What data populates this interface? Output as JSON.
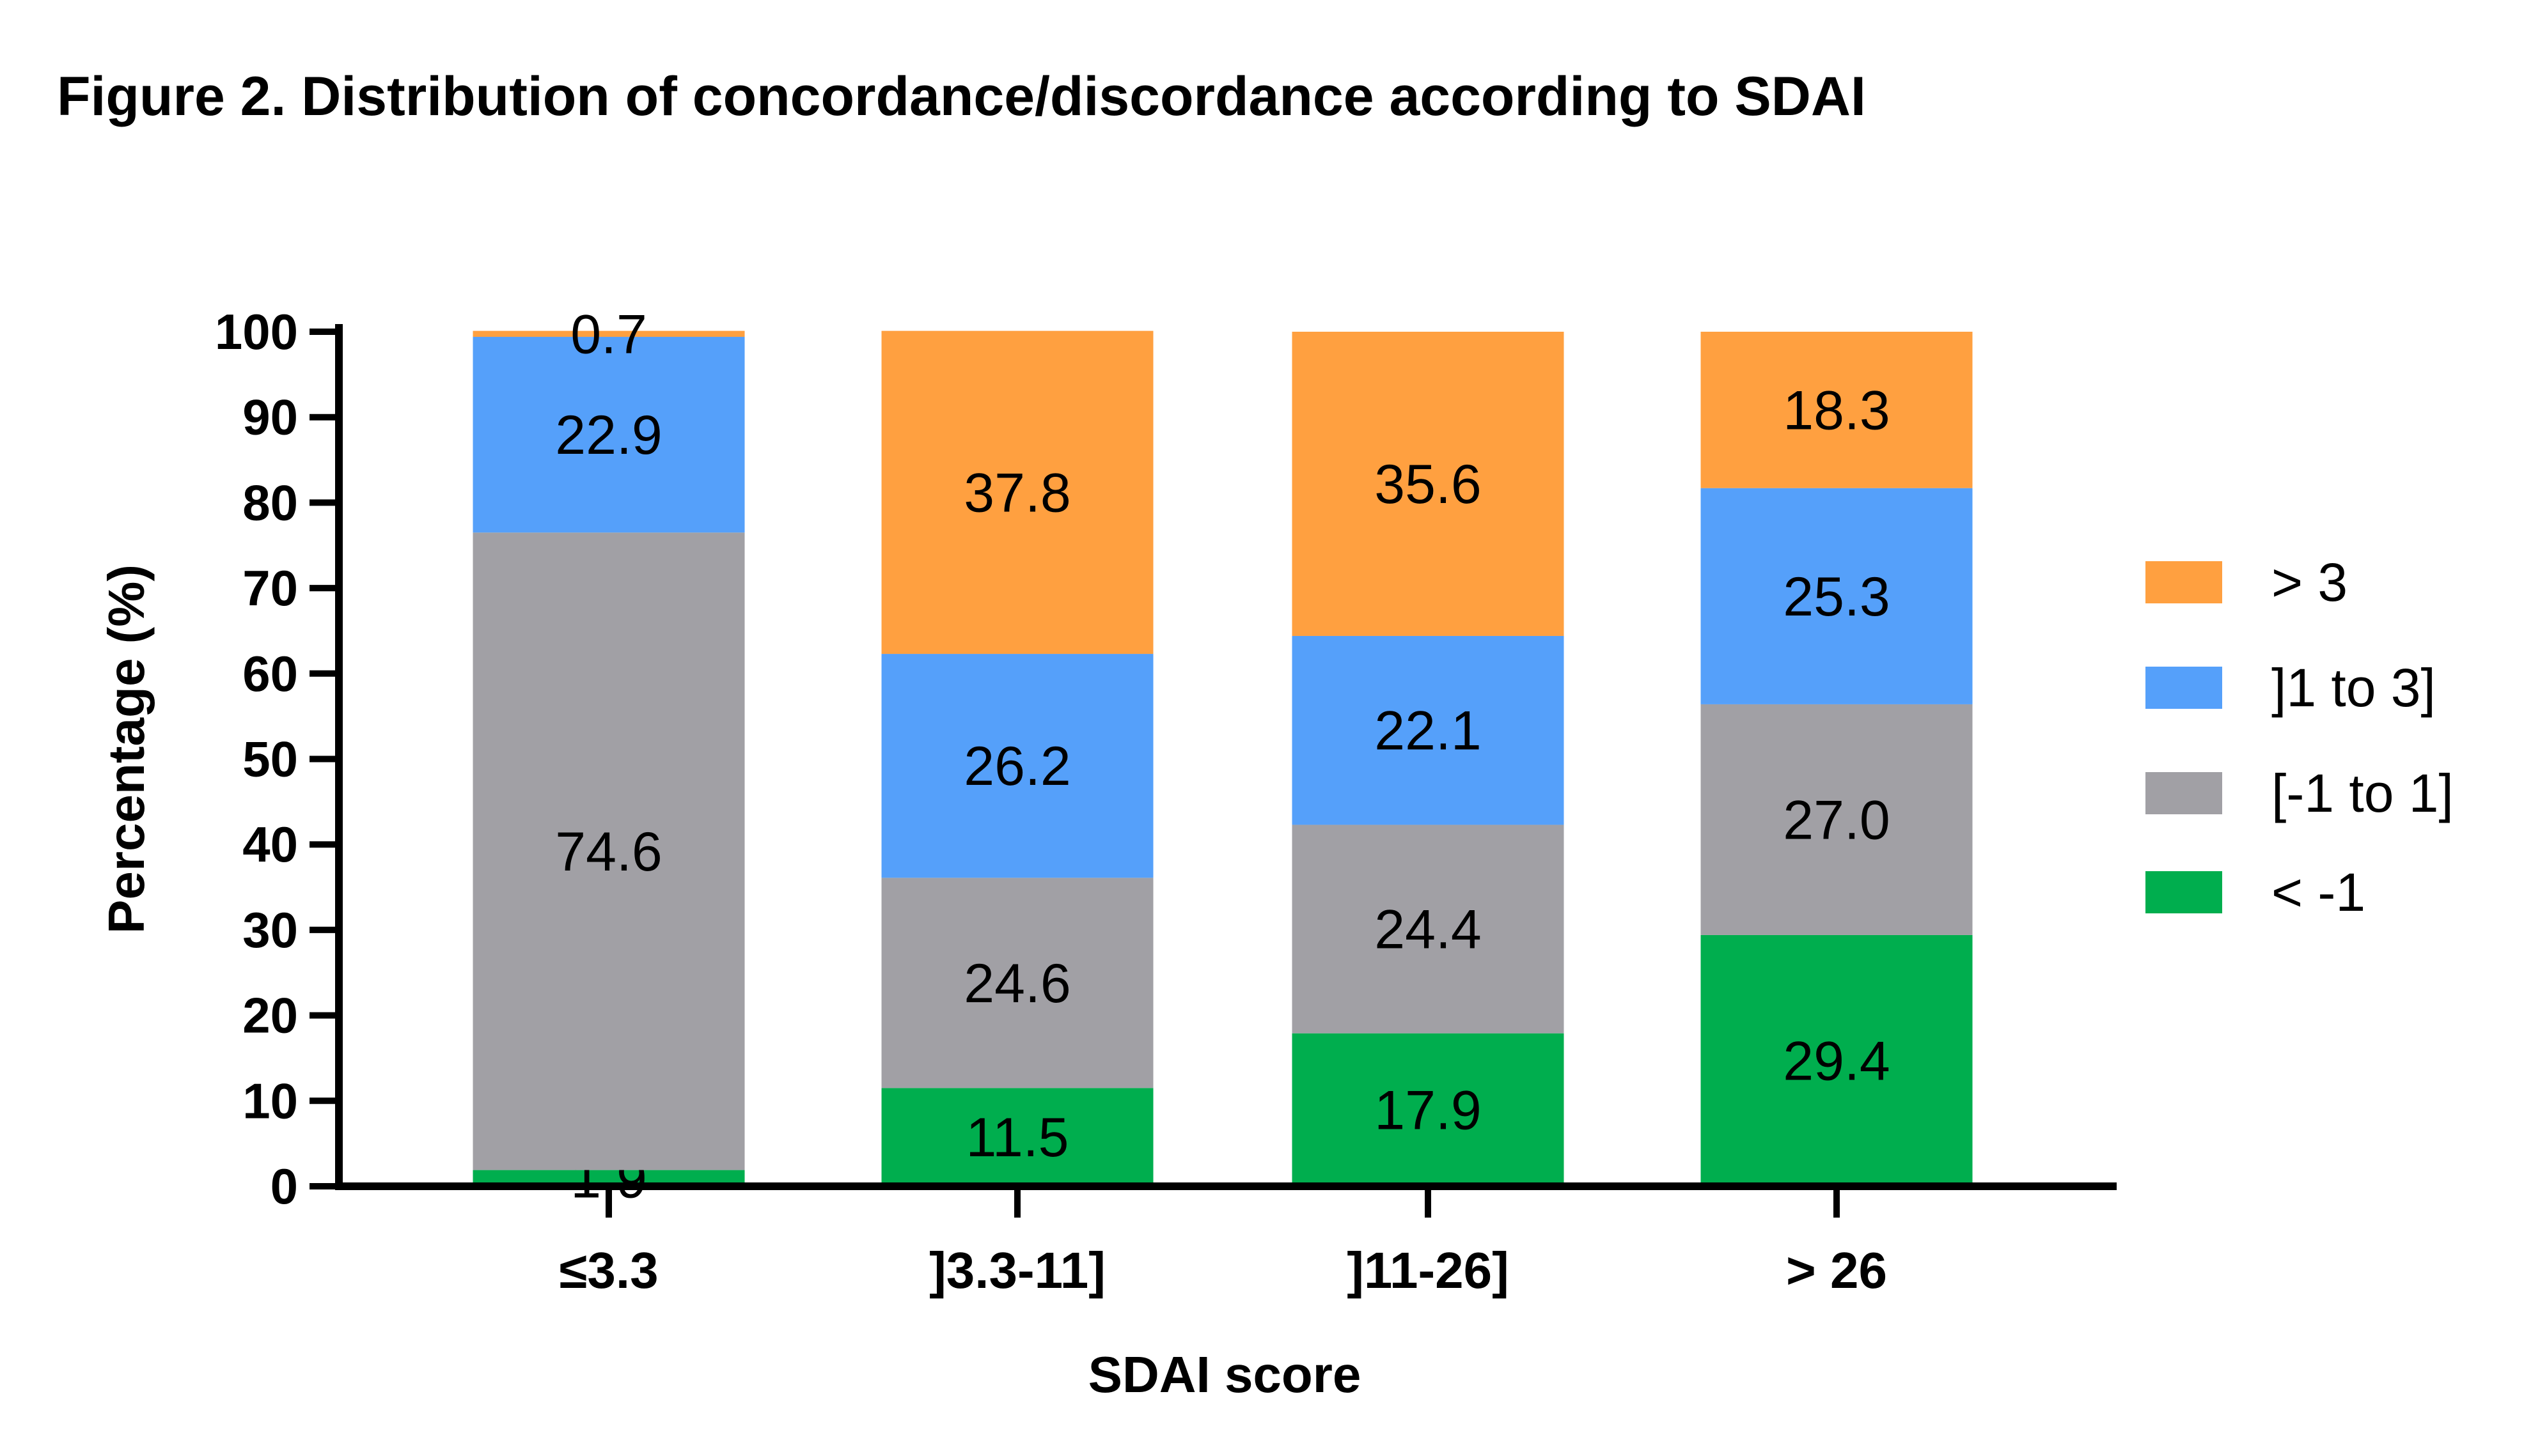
{
  "chart_data": {
    "type": "bar",
    "stacked": true,
    "title": "Figure 2. Distribution of concordance/discordance according to SDAI",
    "xlabel": "SDAI score",
    "ylabel": "Percentage (%)",
    "ylim": [
      0,
      100
    ],
    "yticks": [
      "0",
      "10",
      "20",
      "30",
      "40",
      "50",
      "60",
      "70",
      "80",
      "90",
      "100"
    ],
    "categories": [
      "≤3.3",
      "]3.3-11]",
      "]11-26]",
      "> 26"
    ],
    "series": [
      {
        "name": "< -1",
        "color": "#00AE4E",
        "values": [
          1.9,
          11.5,
          17.9,
          29.4
        ],
        "labels": [
          "1.9",
          "11.5",
          "17.9",
          "29.4"
        ]
      },
      {
        "name": "[-1 to 1]",
        "color": "#A1A0A5",
        "values": [
          74.6,
          24.6,
          24.4,
          27.0
        ],
        "labels": [
          "74.6",
          "24.6",
          "24.4",
          "27.0"
        ]
      },
      {
        "name": "]1 to 3]",
        "color": "#55A0FA",
        "values": [
          22.9,
          26.2,
          22.1,
          25.3
        ],
        "labels": [
          "22.9",
          "26.2",
          "22.1",
          "25.3"
        ]
      },
      {
        "name": "> 3",
        "color": "#FFA040",
        "values": [
          0.7,
          37.8,
          35.6,
          18.3
        ],
        "labels": [
          "0.7",
          "37.8",
          "35.6",
          "18.3"
        ]
      }
    ],
    "legend_order": [
      "> 3",
      "]1 to 3]",
      "[-1 to 1]",
      "< -1"
    ],
    "legend_position": "right",
    "grid": false
  }
}
